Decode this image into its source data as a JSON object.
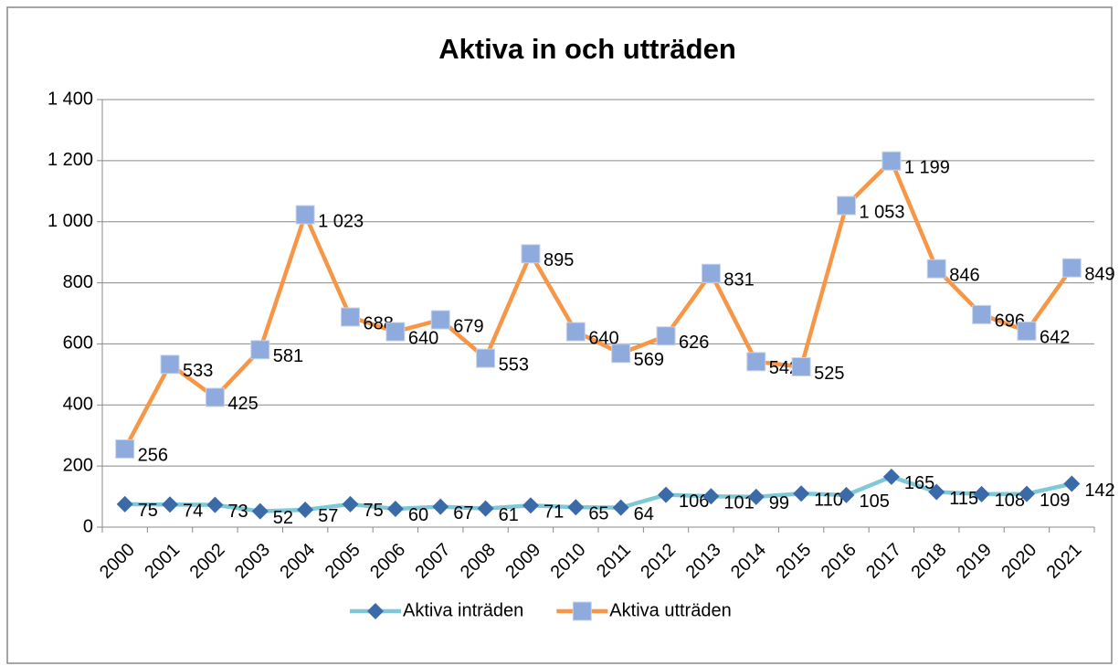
{
  "chart_data": {
    "type": "line",
    "title": "Aktiva in och utträden",
    "categories": [
      "2000",
      "2001",
      "2002",
      "2003",
      "2004",
      "2005",
      "2006",
      "2007",
      "2008",
      "2009",
      "2010",
      "2011",
      "2012",
      "2013",
      "2014",
      "2015",
      "2016",
      "2017",
      "2018",
      "2019",
      "2020",
      "2021"
    ],
    "series": [
      {
        "name": "Aktiva inträden",
        "color": "#7ec8d8",
        "marker_color": "#3a6ba8",
        "marker": "diamond",
        "values": [
          75,
          74,
          73,
          52,
          57,
          75,
          60,
          67,
          61,
          71,
          65,
          64,
          106,
          101,
          99,
          110,
          105,
          165,
          115,
          108,
          109,
          142
        ]
      },
      {
        "name": "Aktiva utträden",
        "color": "#f79646",
        "marker_color": "#8faadc",
        "marker": "square",
        "values": [
          256,
          533,
          425,
          581,
          1023,
          688,
          640,
          679,
          553,
          895,
          640,
          569,
          626,
          831,
          542,
          525,
          1053,
          1199,
          846,
          696,
          642,
          849
        ],
        "value_labels": [
          "256",
          "533",
          "425",
          "581",
          "1 023",
          "688",
          "640",
          "679",
          "553",
          "895",
          "640",
          "569",
          "626",
          "831",
          "542",
          "525",
          "1 053",
          "1 199",
          "846",
          "696",
          "642",
          "849"
        ]
      }
    ],
    "ylim": [
      0,
      1400
    ],
    "yticks": [
      0,
      200,
      400,
      600,
      800,
      {
        "value": 1000,
        "label": "1 000"
      },
      {
        "value": 1200,
        "label": "1 200"
      },
      {
        "value": 1400,
        "label": "1 400"
      }
    ],
    "grid": true,
    "legend": "bottom"
  }
}
